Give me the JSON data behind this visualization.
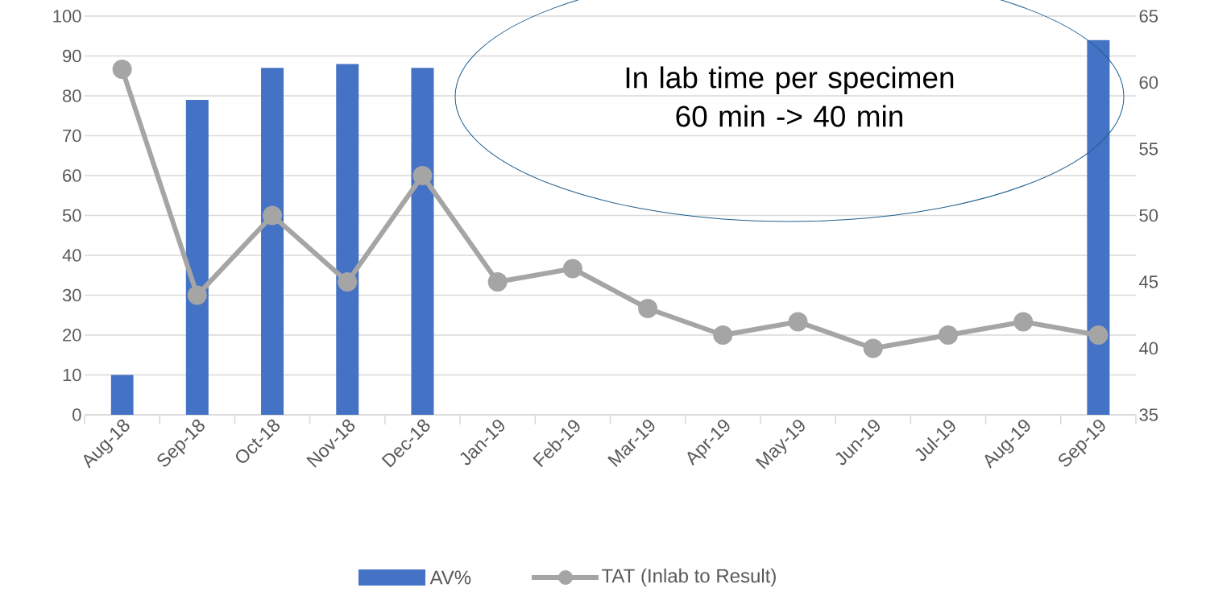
{
  "chart_data": {
    "type": "bar",
    "categories": [
      "Aug-18",
      "Sep-18",
      "Oct-18",
      "Nov-18",
      "Dec-18",
      "Jan-19",
      "Feb-19",
      "Mar-19",
      "Apr-19",
      "May-19",
      "Jun-19",
      "Jul-19",
      "Aug-19",
      "Sep-19"
    ],
    "series": [
      {
        "name": "AV%",
        "color": "#4472c4",
        "values": [
          10,
          79,
          87,
          88,
          87,
          null,
          null,
          null,
          null,
          null,
          null,
          null,
          null,
          94
        ]
      },
      {
        "name": "TAT (Inlab to Result)",
        "color": "#a5a5a5",
        "type": "line",
        "axis": "y2",
        "values": [
          61,
          44,
          50,
          45,
          53,
          45,
          46,
          43,
          41,
          42,
          40,
          41,
          42,
          41
        ]
      }
    ],
    "ylim": [
      0,
      100
    ],
    "yticks": [
      0,
      10,
      20,
      30,
      40,
      50,
      60,
      70,
      80,
      90,
      100
    ],
    "y2lim": [
      35,
      65
    ],
    "y2ticks": [
      35,
      40,
      45,
      50,
      55,
      60,
      65
    ],
    "grid": "y",
    "legend": "bottom",
    "marker": "circle",
    "annotations": [
      "In lab time per specimen 60 min -> 40 min"
    ]
  }
}
